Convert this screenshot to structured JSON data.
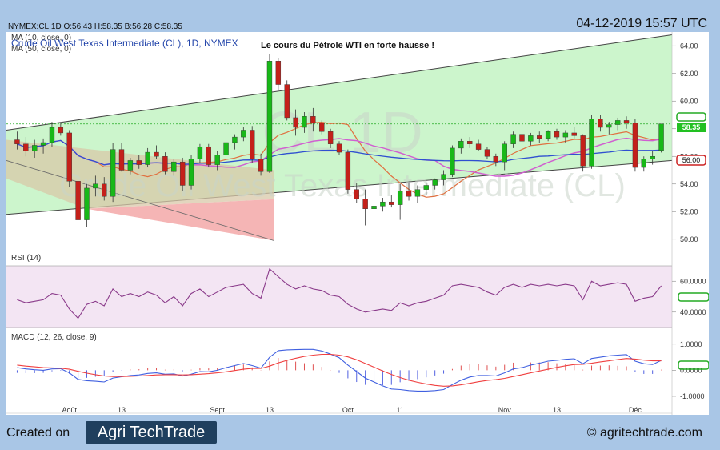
{
  "header": {
    "ticker_line": "NYMEX:CL:1D O:56.43 H:58.35 B:56.28 C:58.35",
    "timestamp": "04-12-2019 15:57 UTC"
  },
  "main_chart": {
    "legend_ma10": "MA (10, close, 0)",
    "legend_title": "Crude Oil West Texas Intermediate (CL), 1D, NYMEX",
    "legend_ma50": "MA (50, close, 0)",
    "annotation": "Le cours du Pétrole WTI en forte hausse !",
    "watermark_symbol": "CL 1D",
    "watermark_name": "Crude Oil West Texas Intermediate (CL)",
    "price_ticks": [
      "64.00",
      "62.00",
      "60.00",
      "58.00",
      "56.00",
      "54.00",
      "52.00",
      "50.00"
    ],
    "last_price_label": "58.35",
    "level_label": "56.00"
  },
  "rsi_panel": {
    "title": "RSI (14)",
    "ticks": [
      "60.0000",
      "40.0000"
    ]
  },
  "macd_panel": {
    "title": "MACD (12, 26, close, 9)",
    "ticks": [
      "1.0000",
      "0.0000",
      "-1.0000"
    ]
  },
  "x_axis": {
    "labels": [
      "Août",
      "13",
      "Sept",
      "13",
      "Oct",
      "11",
      "Nov",
      "13",
      "Déc"
    ]
  },
  "footer": {
    "created_on": "Created on",
    "logo_text": "Agri TechTrade",
    "copyright": "© agritechtrade.com"
  },
  "colors": {
    "up": "#18b818",
    "down": "#c4201a",
    "ma10": "#e07040",
    "ma50": "#3050d0",
    "ma_pink": "#d060d0",
    "channel_fill": "#ccf5cc",
    "triangle_fill": "#f5b5b5",
    "rsi_fill": "#f3e5f3",
    "rsi_line": "#8a3a8a",
    "macd_line": "#4060e0",
    "signal_line": "#f04040",
    "last_price_bg": "#22c022",
    "level_box": "#cc2020"
  },
  "chart_data": [
    {
      "type": "candlestick",
      "title": "Crude Oil West Texas Intermediate (CL), 1D, NYMEX",
      "ylim": [
        49,
        65
      ],
      "x_labels": [
        "Août",
        "13",
        "Sept",
        "13",
        "Oct",
        "11",
        "Nov",
        "13",
        "Déc"
      ],
      "candles": [
        [
          57.2,
          57.8,
          56.5,
          56.9
        ],
        [
          56.9,
          57.4,
          56.0,
          56.4
        ],
        [
          56.4,
          57.2,
          55.9,
          56.8
        ],
        [
          56.8,
          57.3,
          56.2,
          57.0
        ],
        [
          57.0,
          58.5,
          56.7,
          58.1
        ],
        [
          58.1,
          58.4,
          57.5,
          57.7
        ],
        [
          57.7,
          57.9,
          53.8,
          54.2
        ],
        [
          54.2,
          55.1,
          51.1,
          51.4
        ],
        [
          51.4,
          54.0,
          50.9,
          53.7
        ],
        [
          53.7,
          54.6,
          53.1,
          54.0
        ],
        [
          54.0,
          54.5,
          52.8,
          53.1
        ],
        [
          53.1,
          57.0,
          52.7,
          56.5
        ],
        [
          56.5,
          57.0,
          54.9,
          55.0
        ],
        [
          55.0,
          55.9,
          54.7,
          55.7
        ],
        [
          55.7,
          56.1,
          55.1,
          55.4
        ],
        [
          55.4,
          56.6,
          55.2,
          56.3
        ],
        [
          56.3,
          56.8,
          55.8,
          56.0
        ],
        [
          56.0,
          56.3,
          54.7,
          54.9
        ],
        [
          54.9,
          55.8,
          54.6,
          55.6
        ],
        [
          55.6,
          55.9,
          53.5,
          53.9
        ],
        [
          53.9,
          56.1,
          53.6,
          55.8
        ],
        [
          55.8,
          56.9,
          55.5,
          56.7
        ],
        [
          56.7,
          56.9,
          55.2,
          55.4
        ],
        [
          55.4,
          56.4,
          55.0,
          56.1
        ],
        [
          56.1,
          57.3,
          55.8,
          57.0
        ],
        [
          57.0,
          57.6,
          56.5,
          57.4
        ],
        [
          57.4,
          58.1,
          57.1,
          57.9
        ],
        [
          57.9,
          58.2,
          55.5,
          55.8
        ],
        [
          55.8,
          56.2,
          54.6,
          54.9
        ],
        [
          54.9,
          63.4,
          54.8,
          62.9
        ],
        [
          62.9,
          63.1,
          60.8,
          61.2
        ],
        [
          61.2,
          61.5,
          58.6,
          58.8
        ],
        [
          58.8,
          59.4,
          57.5,
          58.1
        ],
        [
          58.1,
          59.2,
          57.7,
          58.9
        ],
        [
          58.9,
          59.5,
          57.8,
          58.4
        ],
        [
          58.4,
          58.6,
          57.6,
          57.8
        ],
        [
          57.8,
          58.0,
          56.6,
          56.9
        ],
        [
          56.9,
          57.1,
          56.1,
          56.3
        ],
        [
          56.3,
          56.5,
          53.3,
          53.6
        ],
        [
          53.6,
          54.1,
          52.6,
          52.9
        ],
        [
          52.9,
          53.6,
          51.0,
          52.2
        ],
        [
          52.2,
          52.8,
          51.6,
          52.4
        ],
        [
          52.4,
          53.0,
          52.0,
          52.7
        ],
        [
          52.7,
          53.2,
          52.3,
          52.5
        ],
        [
          52.5,
          54.0,
          51.4,
          53.5
        ],
        [
          53.5,
          54.1,
          52.8,
          53.1
        ],
        [
          53.1,
          53.9,
          52.6,
          53.6
        ],
        [
          53.6,
          54.1,
          53.2,
          53.9
        ],
        [
          53.9,
          54.4,
          53.6,
          54.3
        ],
        [
          54.3,
          55.0,
          53.9,
          54.7
        ],
        [
          54.7,
          56.8,
          54.5,
          56.6
        ],
        [
          56.6,
          57.3,
          56.2,
          57.1
        ],
        [
          57.1,
          57.4,
          56.6,
          56.9
        ],
        [
          56.9,
          57.2,
          56.4,
          56.5
        ],
        [
          56.5,
          56.7,
          55.8,
          56.0
        ],
        [
          56.0,
          56.2,
          55.3,
          55.6
        ],
        [
          55.6,
          57.1,
          55.0,
          56.9
        ],
        [
          56.9,
          57.8,
          56.6,
          57.6
        ],
        [
          57.6,
          57.9,
          56.9,
          57.1
        ],
        [
          57.1,
          57.7,
          56.8,
          57.5
        ],
        [
          57.5,
          57.8,
          57.0,
          57.3
        ],
        [
          57.3,
          57.9,
          57.1,
          57.8
        ],
        [
          57.8,
          58.0,
          57.2,
          57.4
        ],
        [
          57.4,
          57.9,
          57.0,
          57.7
        ],
        [
          57.7,
          58.1,
          57.3,
          57.5
        ],
        [
          57.5,
          57.6,
          54.9,
          55.3
        ],
        [
          55.3,
          59.0,
          55.1,
          58.7
        ],
        [
          58.7,
          59.0,
          57.8,
          58.1
        ],
        [
          58.1,
          58.5,
          57.6,
          58.3
        ],
        [
          58.3,
          58.8,
          57.9,
          58.6
        ],
        [
          58.6,
          58.9,
          58.0,
          58.4
        ],
        [
          58.4,
          58.7,
          54.9,
          55.2
        ],
        [
          55.2,
          56.0,
          54.9,
          55.8
        ],
        [
          55.8,
          56.4,
          55.4,
          56.0
        ],
        [
          56.43,
          58.35,
          56.28,
          58.35
        ]
      ]
    },
    {
      "type": "line",
      "title": "RSI (14)",
      "ylim": [
        30,
        70
      ],
      "values": [
        48,
        46,
        47,
        48,
        52,
        51,
        42,
        36,
        45,
        47,
        44,
        55,
        50,
        52,
        50,
        53,
        51,
        46,
        50,
        44,
        52,
        55,
        50,
        53,
        56,
        57,
        58,
        52,
        49,
        68,
        63,
        58,
        55,
        57,
        55,
        54,
        51,
        50,
        45,
        42,
        40,
        41,
        42,
        41,
        46,
        44,
        46,
        47,
        49,
        51,
        57,
        58,
        57,
        56,
        53,
        51,
        56,
        58,
        56,
        58,
        57,
        58,
        57,
        58,
        57,
        48,
        60,
        57,
        58,
        59,
        58,
        47,
        49,
        50,
        57
      ]
    },
    {
      "type": "line",
      "title": "MACD (12, 26, close, 9)",
      "ylim": [
        -1.4,
        1.3
      ],
      "macd": [
        0.1,
        0.05,
        0.02,
        0.0,
        0.05,
        0.06,
        -0.1,
        -0.35,
        -0.4,
        -0.42,
        -0.45,
        -0.3,
        -0.25,
        -0.2,
        -0.18,
        -0.12,
        -0.1,
        -0.15,
        -0.14,
        -0.22,
        -0.15,
        -0.05,
        -0.06,
        0.0,
        0.1,
        0.18,
        0.26,
        0.18,
        0.08,
        0.5,
        0.75,
        0.78,
        0.79,
        0.8,
        0.8,
        0.74,
        0.62,
        0.48,
        0.2,
        -0.05,
        -0.3,
        -0.45,
        -0.6,
        -0.72,
        -0.74,
        -0.78,
        -0.8,
        -0.8,
        -0.78,
        -0.74,
        -0.55,
        -0.38,
        -0.26,
        -0.2,
        -0.2,
        -0.22,
        -0.1,
        0.05,
        0.1,
        0.2,
        0.27,
        0.35,
        0.38,
        0.42,
        0.44,
        0.25,
        0.45,
        0.5,
        0.55,
        0.58,
        0.6,
        0.35,
        0.25,
        0.22,
        0.38
      ],
      "signal": [
        0.2,
        0.16,
        0.13,
        0.1,
        0.09,
        0.08,
        0.04,
        -0.04,
        -0.11,
        -0.17,
        -0.22,
        -0.24,
        -0.24,
        -0.23,
        -0.22,
        -0.2,
        -0.18,
        -0.17,
        -0.17,
        -0.18,
        -0.17,
        -0.15,
        -0.13,
        -0.1,
        -0.06,
        -0.01,
        0.04,
        0.07,
        0.07,
        0.16,
        0.28,
        0.38,
        0.46,
        0.53,
        0.58,
        0.61,
        0.61,
        0.58,
        0.51,
        0.4,
        0.26,
        0.12,
        -0.03,
        -0.16,
        -0.28,
        -0.38,
        -0.46,
        -0.53,
        -0.58,
        -0.61,
        -0.6,
        -0.56,
        -0.5,
        -0.44,
        -0.39,
        -0.36,
        -0.31,
        -0.24,
        -0.17,
        -0.1,
        -0.03,
        0.04,
        0.11,
        0.17,
        0.22,
        0.23,
        0.27,
        0.32,
        0.36,
        0.41,
        0.45,
        0.43,
        0.39,
        0.36,
        0.36
      ]
    }
  ]
}
